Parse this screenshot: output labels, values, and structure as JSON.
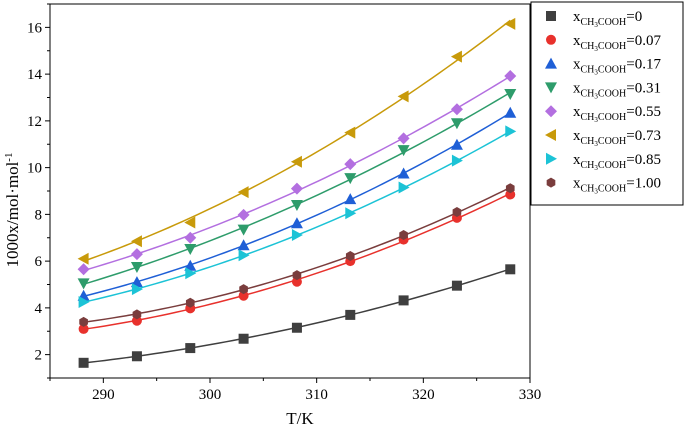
{
  "chart_data": {
    "type": "scatter",
    "title": "",
    "xlabel": "T/K",
    "ylabel": "1000x/mol·mol",
    "ylabel_sup": "-1",
    "xlim": [
      285,
      330
    ],
    "ylim": [
      1,
      17
    ],
    "x_ticks": [
      290,
      300,
      310,
      320,
      330
    ],
    "y_ticks": [
      2,
      4,
      6,
      8,
      10,
      12,
      14,
      16
    ],
    "grid": false,
    "legend_placement": "right",
    "legend_prefix": "x",
    "legend_subscript": "CH",
    "legend_subscript_num": "3",
    "legend_subscript_tail": "COOH",
    "x": [
      288.15,
      293.15,
      298.15,
      303.15,
      308.15,
      313.15,
      318.15,
      323.15,
      328.15
    ],
    "series": [
      {
        "legend_value": "=0",
        "marker": "square",
        "color": "#3f3f3f",
        "values": [
          1.65,
          1.93,
          2.28,
          2.68,
          3.15,
          3.7,
          4.32,
          4.95,
          5.65
        ]
      },
      {
        "legend_value": "=0.07",
        "marker": "circle",
        "color": "#e8312c",
        "values": [
          3.1,
          3.45,
          3.98,
          4.52,
          5.12,
          6.0,
          6.92,
          7.85,
          8.85
        ]
      },
      {
        "legend_value": "=0.17",
        "marker": "triangle-up",
        "color": "#1f5fd6",
        "values": [
          4.52,
          5.1,
          5.8,
          6.68,
          7.62,
          8.65,
          9.75,
          10.98,
          12.35
        ]
      },
      {
        "legend_value": "=0.31",
        "marker": "triangle-down",
        "color": "#2e9c6b",
        "values": [
          5.05,
          5.75,
          6.52,
          7.35,
          8.4,
          9.55,
          10.75,
          11.9,
          13.15
        ]
      },
      {
        "legend_value": "=0.55",
        "marker": "diamond",
        "color": "#b36fe0",
        "values": [
          5.65,
          6.3,
          7.0,
          7.98,
          9.1,
          10.15,
          11.25,
          12.5,
          13.92
        ]
      },
      {
        "legend_value": "=0.73",
        "marker": "triangle-left",
        "color": "#c89a0a",
        "values": [
          6.1,
          6.85,
          7.65,
          8.95,
          10.25,
          11.5,
          13.05,
          14.75,
          16.15
        ]
      },
      {
        "legend_value": "=0.85",
        "marker": "triangle-right",
        "color": "#1cc3d6",
        "values": [
          4.25,
          4.8,
          5.48,
          6.25,
          7.12,
          8.05,
          9.15,
          10.3,
          11.55
        ]
      },
      {
        "legend_value": "=1.00",
        "marker": "hexagon",
        "color": "#7a3d3d",
        "values": [
          3.4,
          3.72,
          4.22,
          4.8,
          5.4,
          6.22,
          7.12,
          8.1,
          9.12
        ]
      }
    ]
  }
}
